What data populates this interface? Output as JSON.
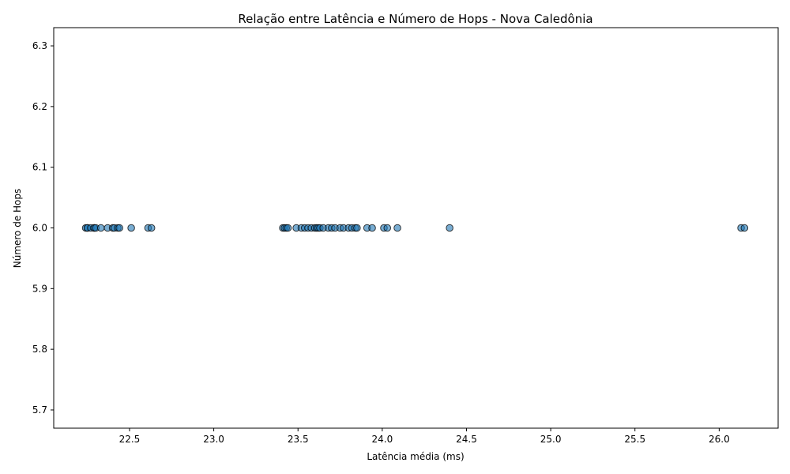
{
  "chart_data": {
    "type": "scatter",
    "title": "Relação entre Latência e Número de Hops - Nova Caledônia",
    "xlabel": "Latência média (ms)",
    "ylabel": "Número de Hops",
    "xlim": [
      22.05,
      26.35
    ],
    "ylim": [
      5.67,
      6.33
    ],
    "x_ticks": [
      22.5,
      23.0,
      23.5,
      24.0,
      24.5,
      25.0,
      25.5,
      26.0
    ],
    "x_tick_labels": [
      "22.5",
      "23.0",
      "23.5",
      "24.0",
      "24.5",
      "25.0",
      "25.5",
      "26.0"
    ],
    "y_ticks": [
      5.7,
      5.8,
      5.9,
      6.0,
      6.1,
      6.2,
      6.3
    ],
    "y_tick_labels": [
      "5.7",
      "5.8",
      "5.9",
      "6.0",
      "6.1",
      "6.2",
      "6.3"
    ],
    "grid": false,
    "legend": "none",
    "marker_color": "#1f77b4",
    "marker_edge_color": "#000000",
    "series": [
      {
        "x": [
          22.24,
          22.25,
          22.25,
          22.27,
          22.29,
          22.29,
          22.3,
          22.33,
          22.37,
          22.4,
          22.41,
          22.43,
          22.44,
          22.51,
          22.61,
          22.63,
          23.41,
          23.42,
          23.43,
          23.44,
          23.49,
          23.52,
          23.54,
          23.56,
          23.58,
          23.6,
          23.61,
          23.62,
          23.63,
          23.65,
          23.68,
          23.7,
          23.72,
          23.75,
          23.77,
          23.8,
          23.82,
          23.84,
          23.85,
          23.91,
          23.94,
          24.01,
          24.03,
          24.09,
          24.4,
          26.13,
          26.15
        ],
        "y": [
          6,
          6,
          6,
          6,
          6,
          6,
          6,
          6,
          6,
          6,
          6,
          6,
          6,
          6,
          6,
          6,
          6,
          6,
          6,
          6,
          6,
          6,
          6,
          6,
          6,
          6,
          6,
          6,
          6,
          6,
          6,
          6,
          6,
          6,
          6,
          6,
          6,
          6,
          6,
          6,
          6,
          6,
          6,
          6,
          6,
          6,
          6
        ]
      }
    ]
  }
}
